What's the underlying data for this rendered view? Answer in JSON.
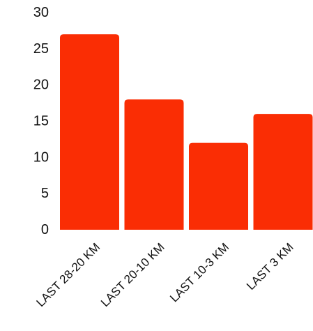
{
  "chart_data": {
    "type": "bar",
    "title": "",
    "xlabel": "",
    "ylabel": "",
    "categories": [
      "LAST 28-20 KM",
      "LAST 20-10 KM",
      "LAST 10-3 KM",
      "LAST 3 KM"
    ],
    "values": [
      27,
      18,
      12,
      16
    ],
    "ylim": [
      0,
      30
    ],
    "yticks": [
      0,
      5,
      10,
      15,
      20,
      25,
      30
    ],
    "grid": false,
    "bar_color": "#fa2d04"
  }
}
